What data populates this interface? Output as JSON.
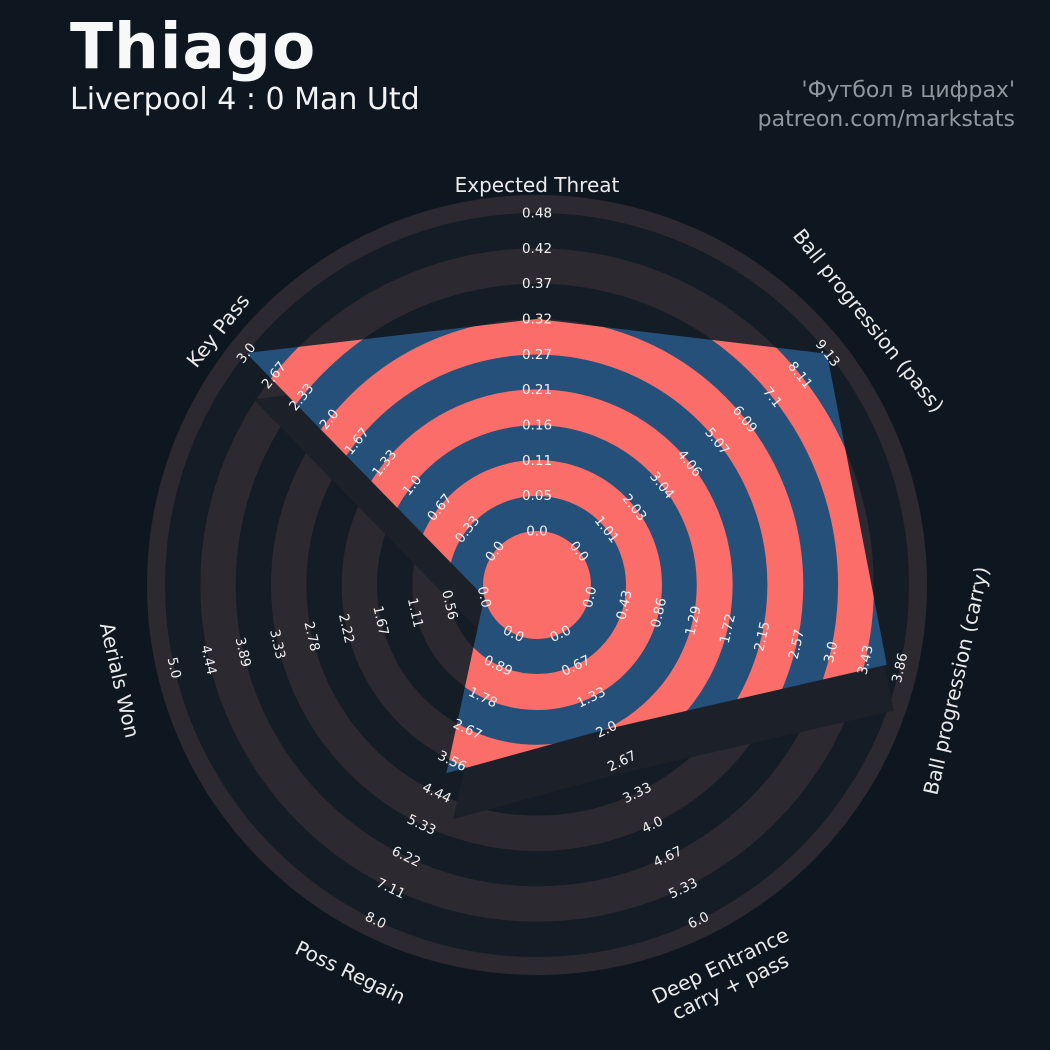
{
  "header": {
    "title": "Thiago",
    "subtitle": "Liverpool 4 : 0 Man Utd",
    "credit_line1": "'Футбол в цифрах'",
    "credit_line2": "patreon.com/markstats"
  },
  "colors": {
    "background": "#0e1720",
    "ring_dark": "#141c26",
    "ring_light": "#2d2931",
    "polygon_blue": "#24507a",
    "slice_salmon": "#fa6d68",
    "center_circle": "#fa6d68",
    "shadow": "#1b2129",
    "tick_text": "#f2f2f2",
    "axis_label_text": "#eaeaea",
    "title_text": "#f7f8f8",
    "credit_text": "#8f979e"
  },
  "chart_data": {
    "type": "radar",
    "title": "Thiago — Liverpool 4 : 0 Man Utd",
    "rings": 9,
    "legend": "none",
    "params": [
      {
        "label": "Expected Threat",
        "label_lines": [
          "Expected Threat"
        ],
        "value": 0.32,
        "min": 0,
        "max": 0.48,
        "ticks": [
          "0.0",
          "0.05",
          "0.11",
          "0.16",
          "0.21",
          "0.27",
          "0.32",
          "0.37",
          "0.42",
          "0.48"
        ]
      },
      {
        "label": "Ball progression (pass)",
        "label_lines": [
          "Ball progression (pass)"
        ],
        "value": 9.1,
        "min": 0,
        "max": 9.13,
        "ticks": [
          "0.0",
          "1.01",
          "2.03",
          "3.04",
          "4.06",
          "5.07",
          "6.09",
          "7.1",
          "8.11",
          "9.13"
        ]
      },
      {
        "label": "Ball progression (carry)",
        "label_lines": [
          "Ball progression (carry)"
        ],
        "value": 3.7,
        "min": 0,
        "max": 3.86,
        "ticks": [
          "0.0",
          "0.43",
          "0.86",
          "1.29",
          "1.72",
          "2.15",
          "2.57",
          "3.0",
          "3.43",
          "3.86"
        ]
      },
      {
        "label": "Deep Entrance carry + pass",
        "label_lines": [
          "Deep Entrance",
          "carry + pass"
        ],
        "value": 2.0,
        "min": 0,
        "max": 6.0,
        "ticks": [
          "0.0",
          "0.67",
          "1.33",
          "2.0",
          "2.67",
          "3.33",
          "4.0",
          "4.67",
          "5.33",
          "6.0"
        ]
      },
      {
        "label": "Poss Regain",
        "label_lines": [
          "Poss Regain"
        ],
        "value": 3.9,
        "min": 0,
        "max": 8.0,
        "ticks": [
          "0.0",
          "0.89",
          "1.78",
          "2.67",
          "3.56",
          "4.44",
          "5.33",
          "6.22",
          "7.11",
          "8.0"
        ]
      },
      {
        "label": "Aerials Won",
        "label_lines": [
          "Aerials Won"
        ],
        "value": 0.0,
        "min": 0,
        "max": 5.0,
        "ticks": [
          "0.0",
          "0.56",
          "1.11",
          "1.67",
          "2.22",
          "2.78",
          "3.33",
          "3.89",
          "4.44",
          "5.0"
        ]
      },
      {
        "label": "Key Pass",
        "label_lines": [
          "Key Pass"
        ],
        "value": 3.0,
        "min": 0,
        "max": 3.0,
        "ticks": [
          "0.0",
          "0.33",
          "0.67",
          "1.0",
          "1.33",
          "1.67",
          "2.0",
          "2.33",
          "2.67",
          "3.0"
        ]
      }
    ]
  }
}
